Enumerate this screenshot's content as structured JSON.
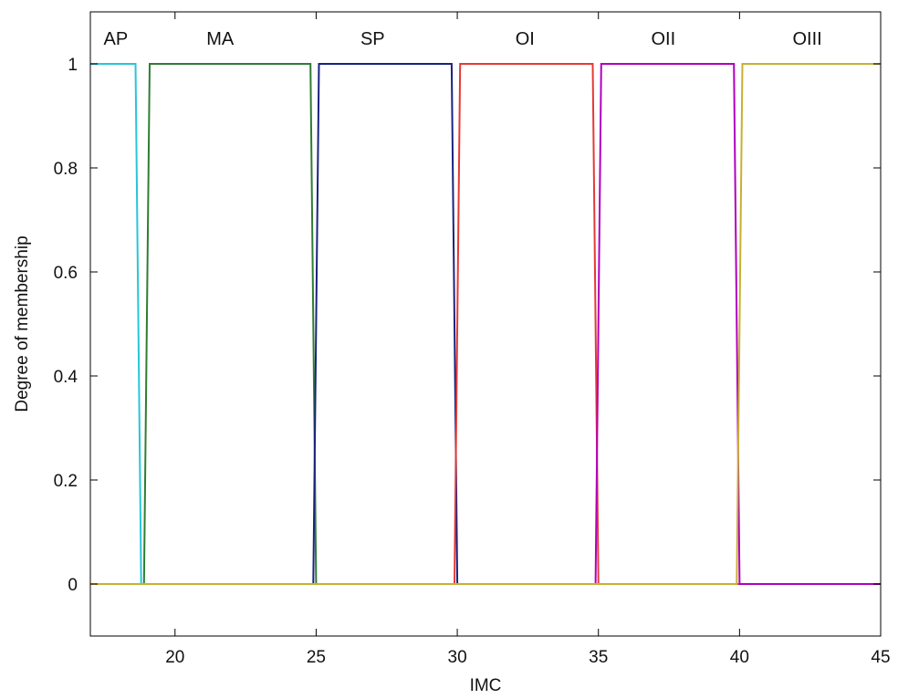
{
  "chart_data": {
    "type": "line",
    "xlabel": "IMC",
    "ylabel": "Degree of membership",
    "xlim": [
      17,
      45
    ],
    "ylim": [
      -0.1,
      1.1
    ],
    "x_ticks": [
      20,
      25,
      30,
      35,
      40,
      45
    ],
    "y_ticks": [
      0,
      0.2,
      0.4,
      0.6,
      0.8,
      1
    ],
    "grid": false,
    "series": [
      {
        "name": "AP",
        "color": "#26c6da",
        "x": [
          17,
          18.6,
          18.8,
          45
        ],
        "y": [
          1,
          1,
          0,
          0
        ]
      },
      {
        "name": "MA",
        "color": "#2e7d32",
        "x": [
          17,
          18.9,
          19.1,
          24.8,
          25.0,
          45
        ],
        "y": [
          0,
          0,
          1,
          1,
          0,
          0
        ]
      },
      {
        "name": "SP",
        "color": "#1a237e",
        "x": [
          17,
          24.9,
          25.1,
          29.8,
          30.0,
          45
        ],
        "y": [
          0,
          0,
          1,
          1,
          0,
          0
        ]
      },
      {
        "name": "OI",
        "color": "#e53935",
        "x": [
          17,
          29.9,
          30.1,
          34.8,
          35.0,
          45
        ],
        "y": [
          0,
          0,
          1,
          1,
          0,
          0
        ]
      },
      {
        "name": "OII",
        "color": "#b000c0",
        "x": [
          17,
          34.9,
          35.1,
          39.8,
          40.0,
          45
        ],
        "y": [
          0,
          0,
          1,
          1,
          0,
          0
        ]
      },
      {
        "name": "OIII",
        "color": "#c8b030",
        "x": [
          17,
          39.9,
          40.1,
          45
        ],
        "y": [
          0,
          0,
          1,
          1
        ]
      }
    ],
    "labels": [
      {
        "text": "AP",
        "x": 17.9
      },
      {
        "text": "MA",
        "x": 21.6
      },
      {
        "text": "SP",
        "x": 27.0
      },
      {
        "text": "OI",
        "x": 32.4
      },
      {
        "text": "OII",
        "x": 37.3
      },
      {
        "text": "OIII",
        "x": 42.4
      }
    ]
  }
}
